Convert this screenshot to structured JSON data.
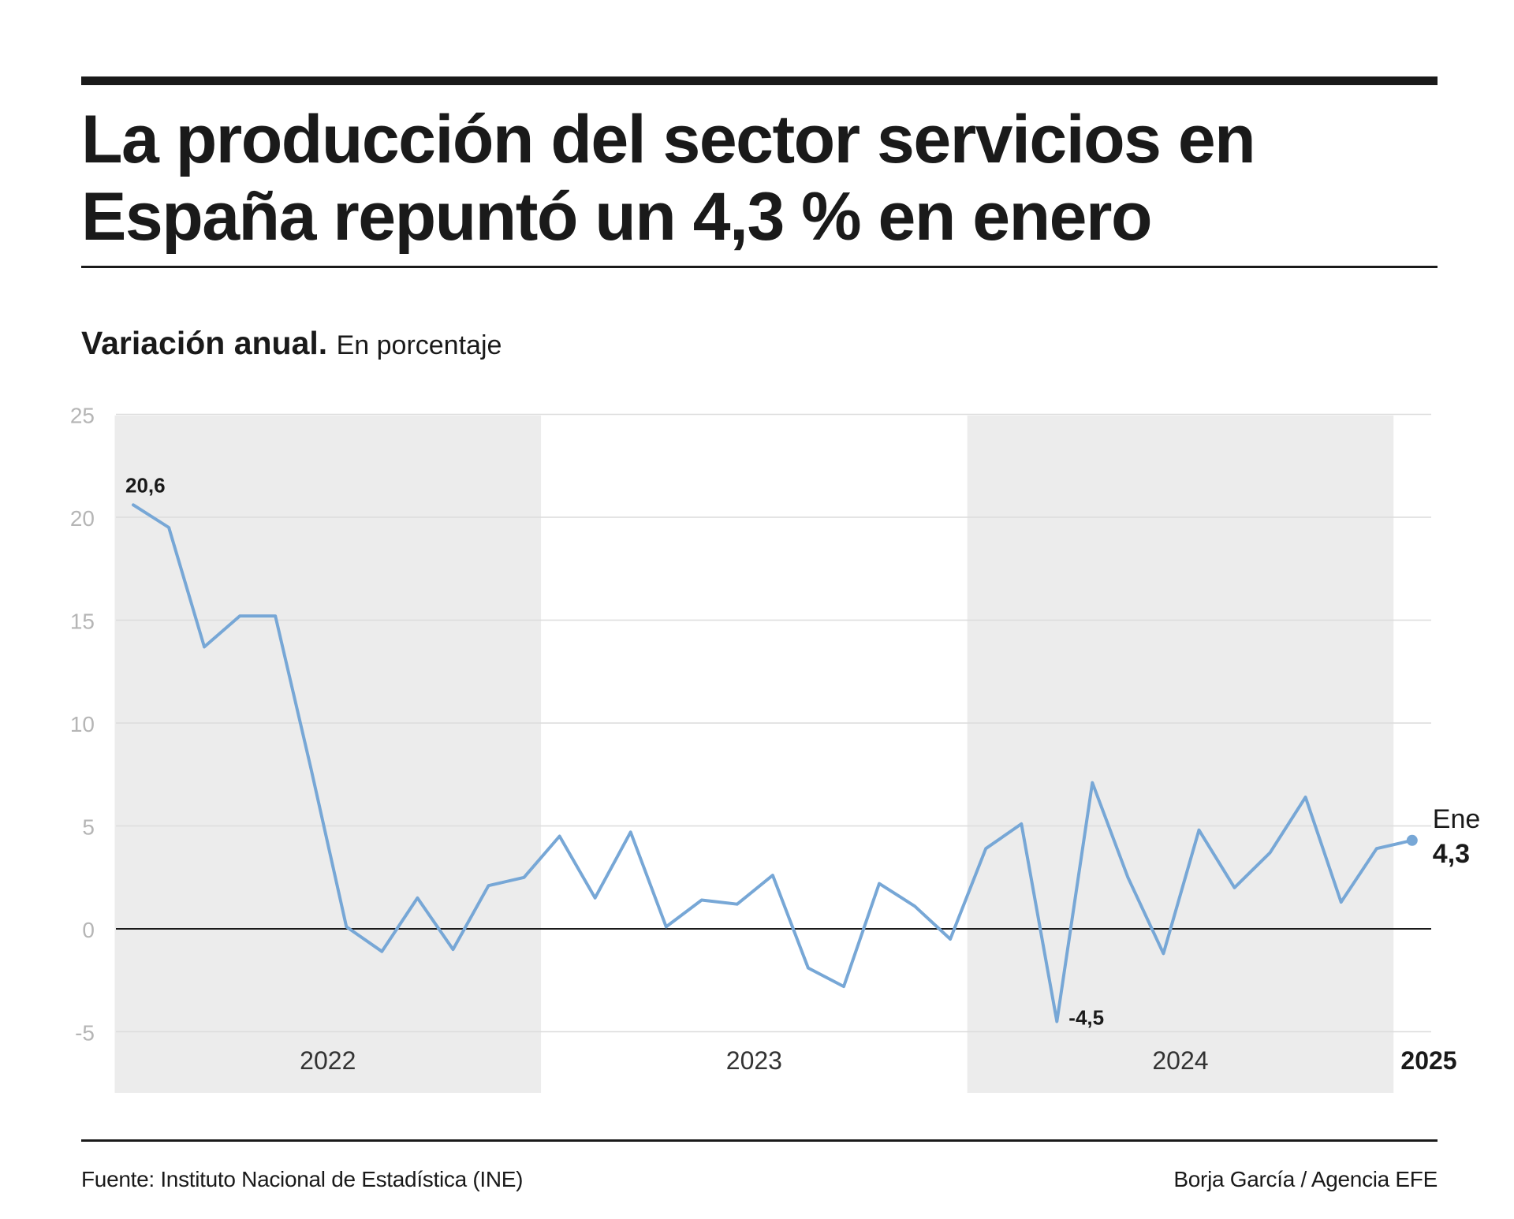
{
  "header": {
    "title": "La producción del sector servicios en España repuntó un 4,3 % en enero",
    "subtitle_bold": "Variación anual.",
    "subtitle_light": "En porcentaje"
  },
  "footer": {
    "source": "Fuente: Instituto Nacional de Estadística (INE)",
    "credit": "Borja García / Agencia EFE"
  },
  "colors": {
    "line": "#77a7d6",
    "band": "#ececec",
    "grid": "#dcdcdc",
    "tick": "#b5b5b5",
    "text": "#1a1a1a"
  },
  "chart_data": {
    "type": "line",
    "x_unit": "month",
    "x": [
      "2022-01",
      "2022-02",
      "2022-03",
      "2022-04",
      "2022-05",
      "2022-06",
      "2022-07",
      "2022-08",
      "2022-09",
      "2022-10",
      "2022-11",
      "2022-12",
      "2023-01",
      "2023-02",
      "2023-03",
      "2023-04",
      "2023-05",
      "2023-06",
      "2023-07",
      "2023-08",
      "2023-09",
      "2023-10",
      "2023-11",
      "2023-12",
      "2024-01",
      "2024-02",
      "2024-03",
      "2024-04",
      "2024-05",
      "2024-06",
      "2024-07",
      "2024-08",
      "2024-09",
      "2024-10",
      "2024-11",
      "2024-12",
      "2025-01"
    ],
    "values": [
      20.6,
      19.5,
      13.7,
      15.2,
      15.2,
      7.8,
      0.1,
      -1.1,
      1.5,
      -1.0,
      2.1,
      2.5,
      4.5,
      1.5,
      4.7,
      0.1,
      1.4,
      1.2,
      2.6,
      -1.9,
      -2.8,
      2.2,
      1.1,
      -0.5,
      3.9,
      5.1,
      -4.5,
      7.1,
      2.5,
      -1.2,
      4.8,
      2.0,
      3.7,
      6.4,
      1.3,
      3.9,
      4.3
    ],
    "ylim": [
      -5,
      25
    ],
    "yticks": [
      "-5",
      "0",
      "5",
      "10",
      "15",
      "20",
      "25"
    ],
    "year_labels": [
      "2022",
      "2023",
      "2024",
      "2025"
    ],
    "shaded_years": [
      "2022",
      "2024"
    ],
    "grid": true,
    "annotations": [
      {
        "index": 0,
        "text": "20,6"
      },
      {
        "index": 26,
        "text": "-4,5"
      }
    ],
    "last_point": {
      "label": "Ene",
      "value_text": "4,3"
    }
  }
}
